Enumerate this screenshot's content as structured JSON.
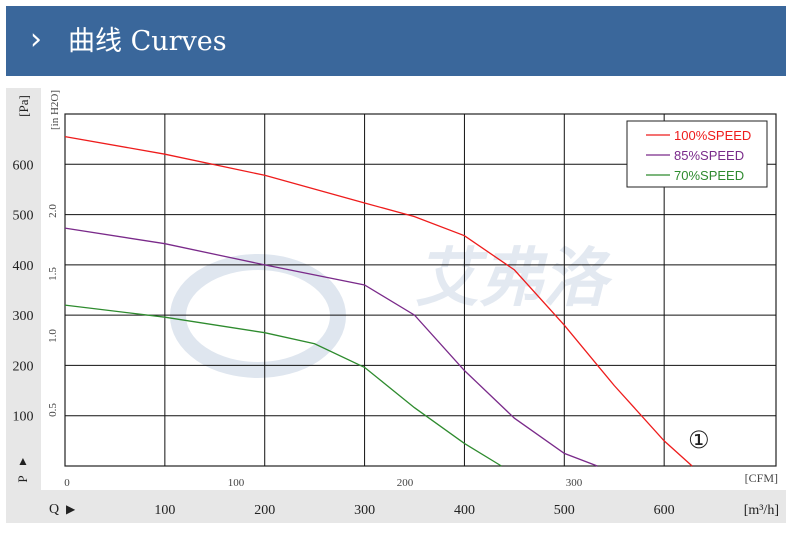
{
  "header": {
    "chevron": "›",
    "title": "曲线 Curves",
    "background": "#3a679b"
  },
  "chart_data": {
    "type": "line",
    "title": "",
    "y_unit_left": "[Pa]",
    "y_label_left": "P",
    "y_ticks_left": [
      100,
      200,
      300,
      400,
      500,
      600
    ],
    "y_unit_inner": "[in H2O]",
    "y_ticks_inner": [
      "0.5",
      "1.0",
      "1.5",
      "2.0"
    ],
    "x_label": "Q",
    "x_unit_inner": "[CFM]",
    "x_ticks_inner": [
      "0",
      "100",
      "200",
      "300"
    ],
    "x_unit_outer": "[m³/h]",
    "x_ticks_outer": [
      100,
      200,
      300,
      400,
      500,
      600
    ],
    "xlim_m3h": [
      0,
      712
    ],
    "ylim_pa": [
      0,
      700
    ],
    "grid": true,
    "legend_position": "top-right",
    "annotation": "①",
    "watermark_text": "艾弗洛",
    "series": [
      {
        "name": "100%SPEED",
        "color": "#ee1c1c",
        "x": [
          0,
          100,
          200,
          300,
          350,
          400,
          450,
          500,
          550,
          600,
          628
        ],
        "y": [
          655,
          620,
          578,
          523,
          496,
          458,
          390,
          280,
          160,
          50,
          0
        ]
      },
      {
        "name": "85%SPEED",
        "color": "#7a2a8a",
        "x": [
          0,
          100,
          200,
          300,
          350,
          400,
          450,
          500,
          533
        ],
        "y": [
          473,
          442,
          400,
          360,
          300,
          190,
          95,
          25,
          0
        ]
      },
      {
        "name": "70%SPEED",
        "color": "#2e8b2e",
        "x": [
          0,
          100,
          200,
          250,
          300,
          350,
          400,
          437
        ],
        "y": [
          320,
          296,
          265,
          243,
          196,
          116,
          45,
          0
        ]
      }
    ]
  }
}
